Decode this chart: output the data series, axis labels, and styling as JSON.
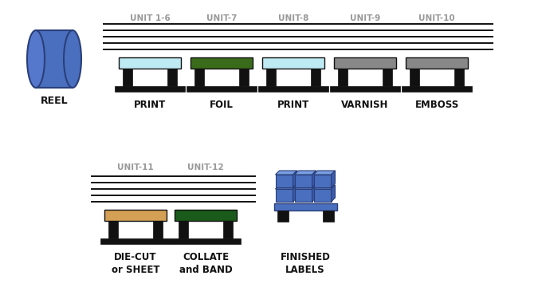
{
  "bg_color": "#ffffff",
  "line_color": "#111111",
  "unit_label_color": "#999999",
  "process_label_color": "#111111",
  "reel_body_color": "#4a6fbe",
  "reel_face_color": "#5577cc",
  "reel_edge_color": "#2a3f7a",
  "units_row1": [
    "UNIT 1-6",
    "UNIT-7",
    "UNIT-8",
    "UNIT-9",
    "UNIT-10"
  ],
  "units_row2": [
    "UNIT-11",
    "UNIT-12"
  ],
  "process_row1": [
    "PRINT",
    "FOIL",
    "PRINT",
    "VARNISH",
    "EMBOSS"
  ],
  "process_row2_1": "DIE-CUT\nor SHEET",
  "process_row2_2": "COLLATE\nand BAND",
  "process_row2_3": "FINISHED\nLABELS",
  "roller_colors_row1": [
    "#beeaf4",
    "#3a6b1a",
    "#beeaf4",
    "#888888",
    "#888888"
  ],
  "roller_colors_row2": [
    "#d4a055",
    "#1a5a1a"
  ],
  "roller_black": "#111111",
  "lines_color": "#111111",
  "stack_color": "#4a6fbe",
  "stack_dark": "#2a3f7a",
  "stack_side": "#3a5aaa",
  "stack_top": "#7a9fe0"
}
